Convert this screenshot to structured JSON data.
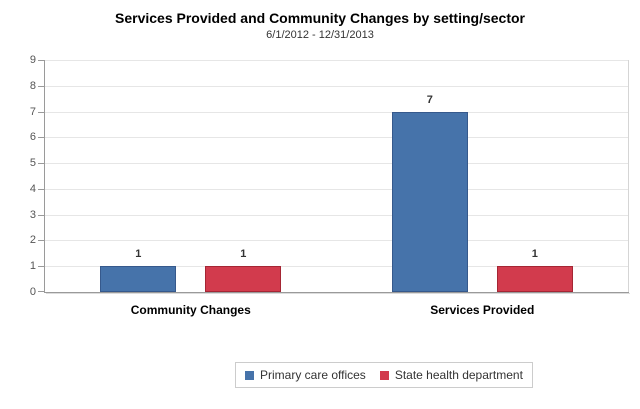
{
  "chart_data": {
    "type": "bar",
    "title": "Services Provided and Community Changes by setting/sector",
    "subtitle": "6/1/2012 - 12/31/2013",
    "categories": [
      "Community Changes",
      "Services Provided"
    ],
    "series": [
      {
        "name": "Primary care offices",
        "color": "#4673AA",
        "border_color": "#36598C",
        "values": [
          1,
          7
        ]
      },
      {
        "name": "State health department",
        "color": "#D23B4D",
        "border_color": "#A52634",
        "values": [
          1,
          1
        ]
      }
    ],
    "ylim": [
      0,
      9
    ],
    "yticks": [
      0,
      1,
      2,
      3,
      4,
      5,
      6,
      7,
      8,
      9
    ],
    "xlabel": "",
    "ylabel": "",
    "grid": true,
    "data_labels": true,
    "legend_position": "bottom"
  },
  "colors": {
    "grid": "#E6E6E6",
    "axis": "#9A9A9A",
    "legend_border": "#CCCCCC"
  }
}
